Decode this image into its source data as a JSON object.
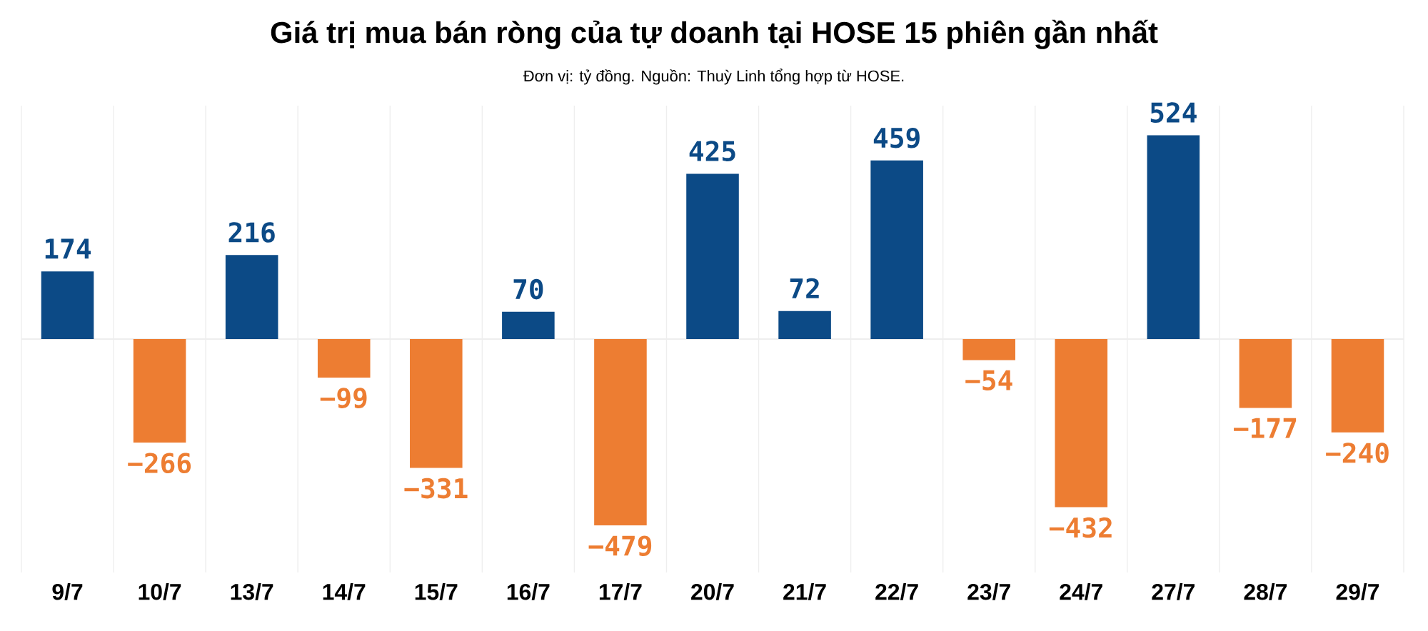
{
  "chart_data": {
    "type": "bar",
    "title": "Giá trị mua bán ròng của tự doanh tại HOSE 15 phiên gần nhất",
    "subtitle": "Đơn vị: tỷ đồng. Nguồn: Thuỳ Linh tổng hợp từ HOSE.",
    "categories": [
      "9/7",
      "10/7",
      "13/7",
      "14/7",
      "15/7",
      "16/7",
      "17/7",
      "20/7",
      "21/7",
      "22/7",
      "23/7",
      "24/7",
      "27/7",
      "28/7",
      "29/7"
    ],
    "values": [
      174,
      -266,
      216,
      -99,
      -331,
      70,
      -479,
      425,
      72,
      459,
      -54,
      -432,
      524,
      -177,
      -240
    ],
    "colors": [
      "#0c4a86",
      "#ed7d32",
      "#0c4a86",
      "#ed7d32",
      "#ed7d32",
      "#0c4a86",
      "#ed7d32",
      "#0c4a86",
      "#0c4a86",
      "#0c4a86",
      "#ed7d32",
      "#ed7d32",
      "#0c4a86",
      "#ed7d32",
      "#ed7d32"
    ],
    "value_labels": [
      "174",
      "−266",
      "216",
      "−99",
      "−331",
      "70",
      "−479",
      "425",
      "72",
      "459",
      "−54",
      "−432",
      "524",
      "−177",
      "−240"
    ],
    "ylim": [
      -600,
      600
    ],
    "grid": "x",
    "tick_labels": "x"
  }
}
